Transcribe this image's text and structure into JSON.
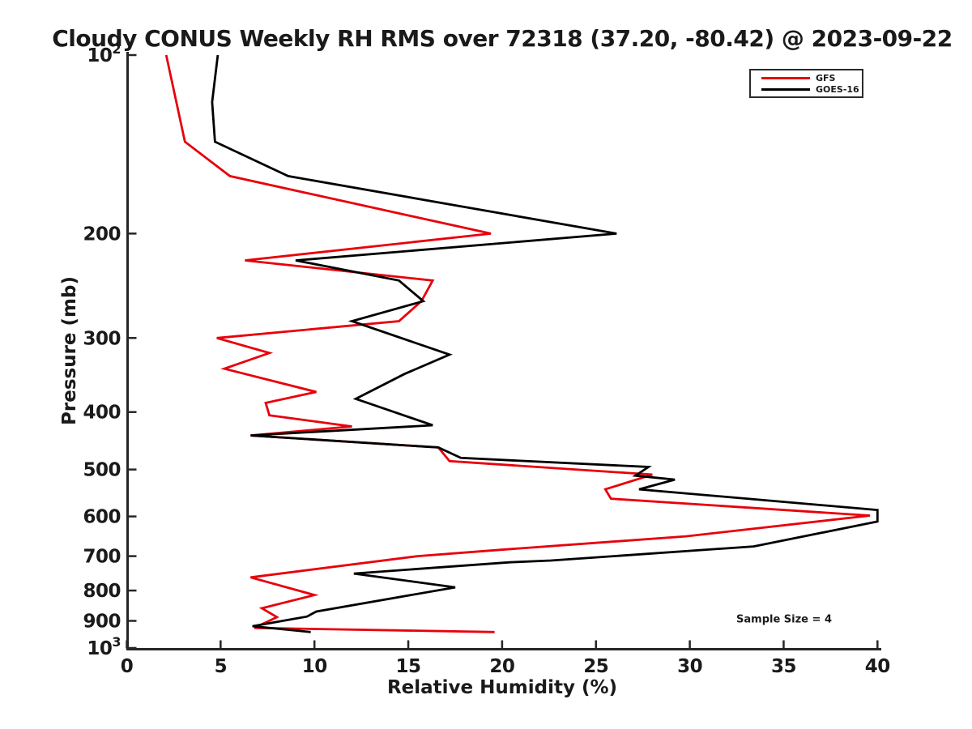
{
  "figure": {
    "title": "Cloudy CONUS Weekly RH RMS over 72318 (37.20, -80.42) @ 2023-09-22",
    "annotation": "Sample Size = 4"
  },
  "legend": {
    "entries": [
      {
        "label": "GFS",
        "color": "#e8000b"
      },
      {
        "label": "GOES-16",
        "color": "#000000"
      }
    ]
  },
  "chart_data": {
    "type": "line",
    "title": "Cloudy CONUS Weekly RH RMS over 72318 (37.20, -80.42) @ 2023-09-22",
    "xlabel": "Relative Humidity (%)",
    "ylabel": "Pressure (mb)",
    "xlim": [
      0,
      40
    ],
    "ylim": [
      1000,
      100
    ],
    "yscale": "log",
    "grid": false,
    "legend_position": "upper right",
    "annotation": "Sample Size = 4",
    "xticks": [
      0,
      5,
      10,
      15,
      20,
      25,
      30,
      35,
      40
    ],
    "yticks": [
      {
        "p": 100,
        "base": "10",
        "sup": "2"
      },
      {
        "p": 200,
        "base": "200"
      },
      {
        "p": 300,
        "base": "300"
      },
      {
        "p": 400,
        "base": "400"
      },
      {
        "p": 500,
        "base": "500"
      },
      {
        "p": 600,
        "base": "600"
      },
      {
        "p": 700,
        "base": "700"
      },
      {
        "p": 800,
        "base": "800"
      },
      {
        "p": 900,
        "base": "900"
      },
      {
        "p": 1000,
        "base": "10",
        "sup": "3"
      }
    ],
    "series": [
      {
        "name": "GFS",
        "color": "#e8000b",
        "points_format": "[pressure_mb, rh_rms_percent]",
        "points": [
          [
            100,
            2.1
          ],
          [
            140,
            3.1
          ],
          [
            160,
            5.5
          ],
          [
            200,
            19.4
          ],
          [
            222,
            6.3
          ],
          [
            240,
            16.3
          ],
          [
            260,
            15.7
          ],
          [
            281,
            14.5
          ],
          [
            300,
            4.8
          ],
          [
            318,
            7.6
          ],
          [
            338,
            5.2
          ],
          [
            370,
            10.1
          ],
          [
            386,
            7.4
          ],
          [
            405,
            7.6
          ],
          [
            423,
            12.0
          ],
          [
            438,
            6.6
          ],
          [
            459,
            16.6
          ],
          [
            484,
            17.2
          ],
          [
            510,
            28.0
          ],
          [
            540,
            25.5
          ],
          [
            560,
            25.8
          ],
          [
            598,
            39.6
          ],
          [
            648,
            29.8
          ],
          [
            684,
            19.6
          ],
          [
            700,
            15.5
          ],
          [
            760,
            6.6
          ],
          [
            814,
            10.0
          ],
          [
            857,
            7.2
          ],
          [
            887,
            8.0
          ],
          [
            925,
            6.8
          ],
          [
            940,
            19.6
          ]
        ]
      },
      {
        "name": "GOES-16",
        "color": "#000000",
        "points_format": "[pressure_mb, rh_rms_percent]",
        "points": [
          [
            100,
            4.85
          ],
          [
            120,
            4.55
          ],
          [
            140,
            4.7
          ],
          [
            160,
            8.6
          ],
          [
            200,
            26.1
          ],
          [
            222,
            9.0
          ],
          [
            240,
            14.5
          ],
          [
            260,
            15.8
          ],
          [
            281,
            12.0
          ],
          [
            320,
            17.2
          ],
          [
            345,
            14.8
          ],
          [
            380,
            12.2
          ],
          [
            421,
            16.3
          ],
          [
            438,
            6.6
          ],
          [
            459,
            16.6
          ],
          [
            478,
            17.8
          ],
          [
            495,
            27.8
          ],
          [
            512,
            27.1
          ],
          [
            520,
            29.2
          ],
          [
            540,
            27.3
          ],
          [
            585,
            40.0
          ],
          [
            612,
            40.0
          ],
          [
            674,
            33.4
          ],
          [
            712,
            22.6
          ],
          [
            717,
            20.4
          ],
          [
            749,
            12.1
          ],
          [
            790,
            17.5
          ],
          [
            868,
            10.1
          ],
          [
            885,
            9.6
          ],
          [
            919,
            6.7
          ],
          [
            940,
            9.8
          ]
        ]
      }
    ]
  }
}
